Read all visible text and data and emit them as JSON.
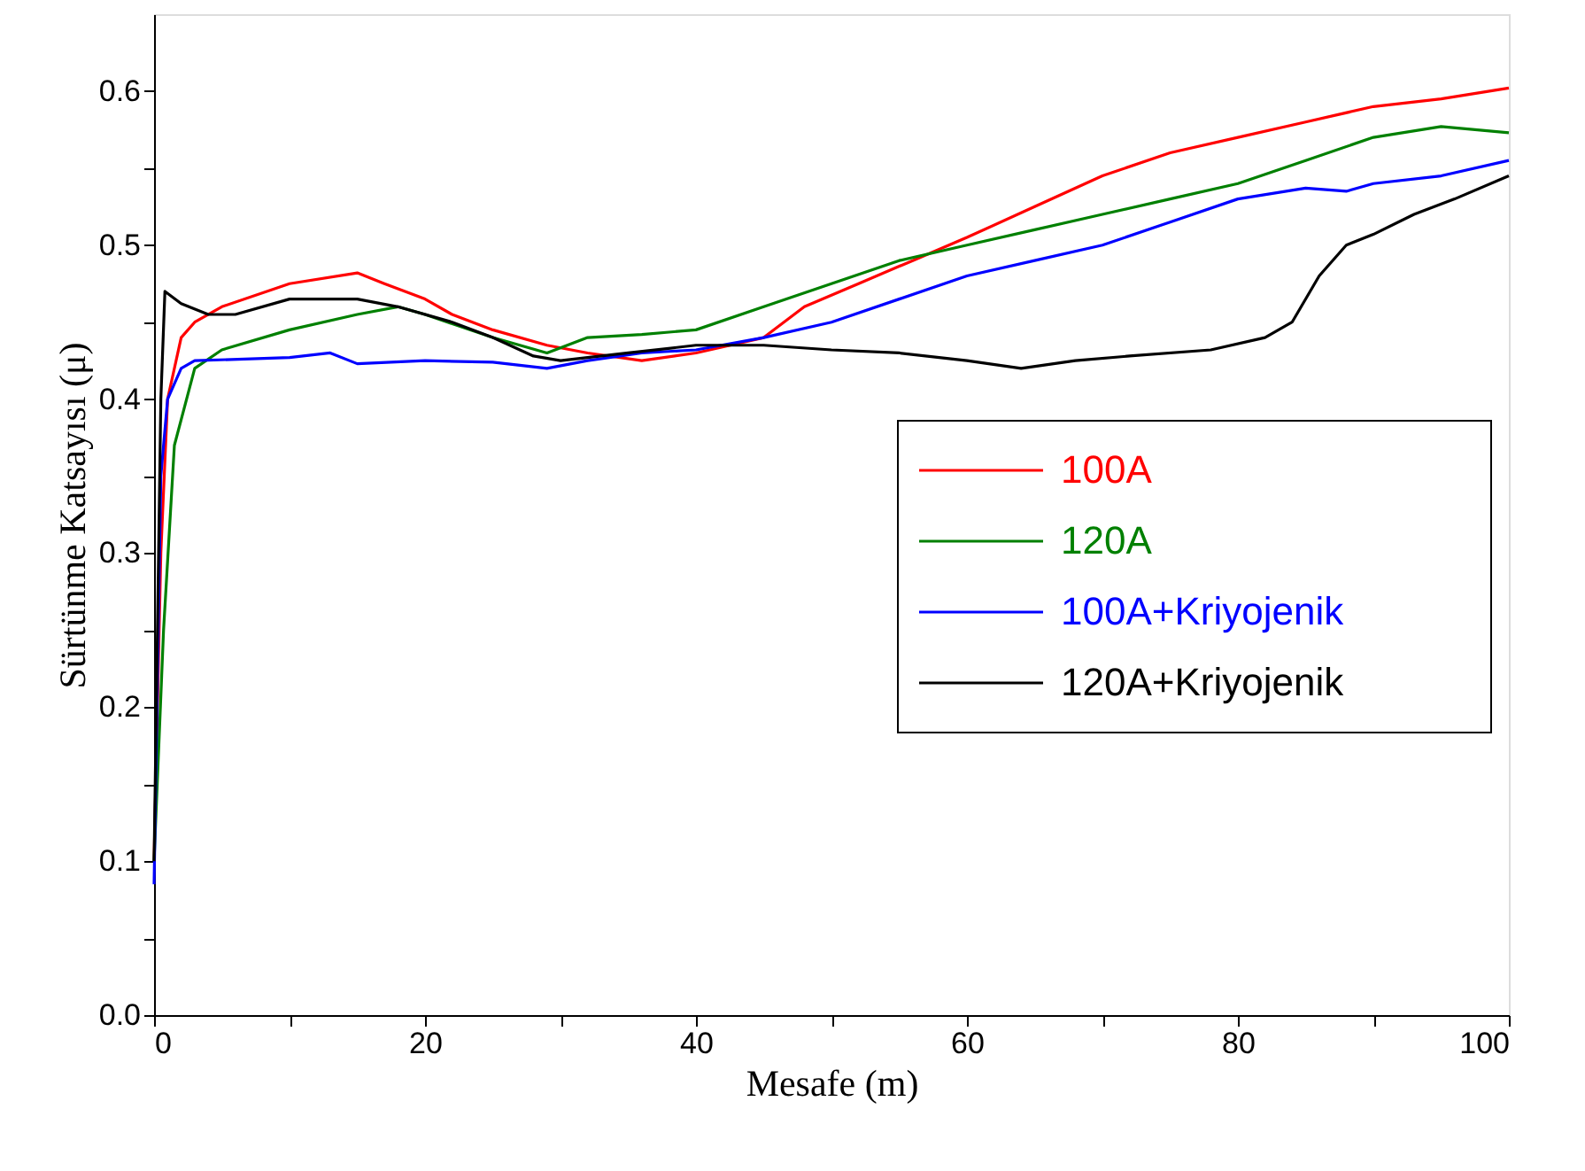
{
  "chart_data": {
    "type": "line",
    "xlabel": "Mesafe (m)",
    "ylabel": "Sürtünme Katsayısı (μ)",
    "xlim": [
      0,
      100
    ],
    "ylim": [
      0,
      0.65
    ],
    "xticks": [
      0,
      {
        "value": 10,
        "label": null
      },
      20,
      {
        "value": 30,
        "label": null
      },
      40,
      {
        "value": 50,
        "label": null
      },
      60,
      {
        "value": 70,
        "label": null
      },
      80,
      {
        "value": 90,
        "label": null
      },
      100
    ],
    "yticks": [
      {
        "value": 0,
        "label": "0.0"
      },
      {
        "value": 0.05,
        "label": null
      },
      0.1,
      {
        "value": 0.15,
        "label": null
      },
      0.2,
      {
        "value": 0.25,
        "label": null
      },
      0.3,
      {
        "value": 0.35,
        "label": null
      },
      0.4,
      {
        "value": 0.45,
        "label": null
      },
      0.5,
      {
        "value": 0.55,
        "label": null
      },
      0.6
    ],
    "grid": false,
    "legend": "right",
    "line_style": "solid",
    "marker": "none",
    "series": [
      {
        "name": "100A",
        "color": "#ff0000",
        "x": [
          0,
          0.5,
          1,
          2,
          3,
          5,
          10,
          15,
          17,
          20,
          22,
          25,
          29,
          32,
          36,
          40,
          45,
          48,
          52,
          56,
          60,
          65,
          70,
          75,
          80,
          85,
          90,
          95,
          100
        ],
        "values": [
          0.1,
          0.3,
          0.4,
          0.44,
          0.45,
          0.46,
          0.475,
          0.482,
          0.475,
          0.465,
          0.455,
          0.445,
          0.435,
          0.43,
          0.425,
          0.43,
          0.44,
          0.46,
          0.475,
          0.49,
          0.505,
          0.525,
          0.545,
          0.56,
          0.57,
          0.58,
          0.59,
          0.595,
          0.602
        ]
      },
      {
        "name": "120A",
        "color": "#008000",
        "x": [
          0,
          0.7,
          1.5,
          3,
          5,
          10,
          15,
          18,
          20,
          25,
          29,
          32,
          36,
          40,
          45,
          50,
          55,
          60,
          65,
          70,
          75,
          80,
          85,
          90,
          95,
          100
        ],
        "values": [
          0.1,
          0.25,
          0.37,
          0.42,
          0.432,
          0.445,
          0.455,
          0.46,
          0.455,
          0.44,
          0.43,
          0.44,
          0.442,
          0.445,
          0.46,
          0.475,
          0.49,
          0.5,
          0.51,
          0.52,
          0.53,
          0.54,
          0.555,
          0.57,
          0.577,
          0.573
        ]
      },
      {
        "name": "100A+Kriyojenik",
        "color": "#0000ff",
        "x": [
          0,
          0.5,
          1,
          2,
          3,
          10,
          13,
          15,
          20,
          25,
          29,
          32,
          36,
          40,
          45,
          50,
          55,
          60,
          65,
          70,
          75,
          80,
          85,
          88,
          90,
          95,
          100
        ],
        "values": [
          0.085,
          0.35,
          0.4,
          0.42,
          0.425,
          0.427,
          0.43,
          0.423,
          0.425,
          0.424,
          0.42,
          0.425,
          0.43,
          0.432,
          0.44,
          0.45,
          0.465,
          0.48,
          0.49,
          0.5,
          0.515,
          0.53,
          0.537,
          0.535,
          0.54,
          0.545,
          0.555
        ]
      },
      {
        "name": "120A+Kriyojenik",
        "color": "#000000",
        "x": [
          0,
          0.5,
          0.8,
          2,
          4,
          6,
          10,
          15,
          18,
          22,
          25,
          28,
          30,
          35,
          40,
          45,
          50,
          55,
          60,
          64,
          68,
          72,
          78,
          82,
          84,
          86,
          88,
          90,
          93,
          96,
          100
        ],
        "values": [
          0.1,
          0.4,
          0.47,
          0.462,
          0.455,
          0.455,
          0.465,
          0.465,
          0.46,
          0.45,
          0.44,
          0.428,
          0.425,
          0.43,
          0.435,
          0.435,
          0.432,
          0.43,
          0.425,
          0.42,
          0.425,
          0.428,
          0.432,
          0.44,
          0.45,
          0.48,
          0.5,
          0.507,
          0.52,
          0.53,
          0.545
        ]
      }
    ]
  }
}
